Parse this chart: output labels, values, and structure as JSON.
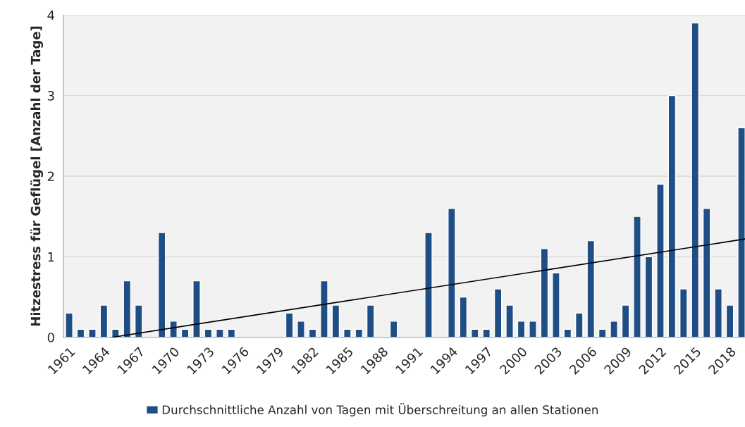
{
  "chart_data": {
    "type": "bar",
    "ylabel": "Hitzestress für Geflügel [Anzahl der Tage]",
    "x": [
      1961,
      1962,
      1963,
      1964,
      1965,
      1966,
      1967,
      1968,
      1969,
      1970,
      1971,
      1972,
      1973,
      1974,
      1975,
      1976,
      1977,
      1978,
      1979,
      1980,
      1981,
      1982,
      1983,
      1984,
      1985,
      1986,
      1987,
      1988,
      1989,
      1990,
      1991,
      1992,
      1993,
      1994,
      1995,
      1996,
      1997,
      1998,
      1999,
      2000,
      2001,
      2002,
      2003,
      2004,
      2005,
      2006,
      2007,
      2008,
      2009,
      2010,
      2011,
      2012,
      2013,
      2014,
      2015,
      2016,
      2017,
      2018,
      2019
    ],
    "xlim": [
      1960.5,
      2019.3
    ],
    "xticks": [
      1961,
      1964,
      1967,
      1970,
      1973,
      1976,
      1979,
      1982,
      1985,
      1988,
      1991,
      1994,
      1997,
      2000,
      2003,
      2006,
      2009,
      2012,
      2015,
      2018
    ],
    "ylim": [
      0,
      4
    ],
    "yticks": [
      0,
      1,
      2,
      3,
      4
    ],
    "grid": "y",
    "legend": "bottom",
    "series": [
      {
        "name": "Durchschnittliche Anzahl von Tagen mit Überschreitung an allen Stationen",
        "color": "#1f4e85",
        "values": [
          0.3,
          0.1,
          0.1,
          0.4,
          0.1,
          0.7,
          0.4,
          null,
          1.3,
          0.2,
          0.1,
          0.7,
          0.1,
          0.1,
          0.1,
          null,
          null,
          null,
          null,
          0.3,
          0.2,
          0.1,
          0.7,
          0.4,
          0.1,
          0.1,
          0.4,
          null,
          0.2,
          null,
          null,
          1.3,
          null,
          1.6,
          0.5,
          0.1,
          0.1,
          0.6,
          0.4,
          0.2,
          0.2,
          1.1,
          0.8,
          0.1,
          0.3,
          1.2,
          0.1,
          0.2,
          0.4,
          1.5,
          1.0,
          1.9,
          3.0,
          0.6,
          3.9,
          1.6,
          0.6,
          0.4,
          2.6
        ]
      },
      {
        "type": "line",
        "color": "#000000",
        "x": [
          1964.7,
          2019.3
        ],
        "values": [
          0,
          1.22
        ]
      }
    ]
  }
}
